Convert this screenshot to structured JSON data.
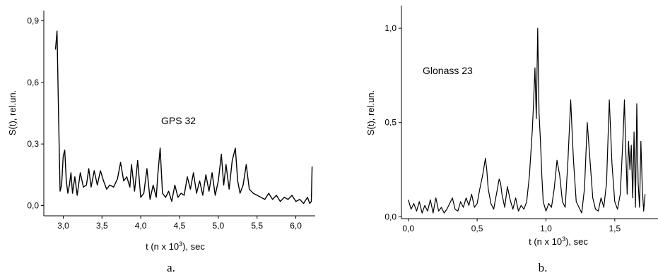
{
  "chart_data": [
    {
      "type": "line",
      "annotation": "GPS 32",
      "caption": "a.",
      "xlabel_main": "t (n x 10",
      "xlabel_sup": "3",
      "xlabel_tail": "), sec",
      "ylabel": "S(t), rel.un.",
      "xlim": [
        2.75,
        6.25
      ],
      "ylim": [
        -0.05,
        0.95
      ],
      "xticks": [
        3.0,
        3.5,
        4.0,
        4.5,
        5.0,
        5.5,
        6.0
      ],
      "xtick_labels": [
        "3,0",
        "3,5",
        "4,0",
        "4,5",
        "5,0",
        "5,5",
        "6,0"
      ],
      "yticks": [
        0.0,
        0.3,
        0.6,
        0.9
      ],
      "ytick_labels": [
        "0,0",
        "0,3",
        "0,6",
        "0,9"
      ],
      "grid": false,
      "x": [
        2.9,
        2.92,
        2.94,
        2.96,
        2.98,
        3.0,
        3.02,
        3.04,
        3.06,
        3.08,
        3.1,
        3.12,
        3.15,
        3.18,
        3.22,
        3.26,
        3.3,
        3.33,
        3.36,
        3.4,
        3.44,
        3.48,
        3.52,
        3.56,
        3.6,
        3.65,
        3.7,
        3.74,
        3.78,
        3.82,
        3.86,
        3.88,
        3.92,
        3.96,
        4.0,
        4.04,
        4.08,
        4.12,
        4.16,
        4.2,
        4.22,
        4.25,
        4.28,
        4.32,
        4.36,
        4.4,
        4.44,
        4.48,
        4.52,
        4.56,
        4.6,
        4.64,
        4.68,
        4.72,
        4.76,
        4.8,
        4.84,
        4.88,
        4.92,
        4.96,
        5.0,
        5.04,
        5.07,
        5.1,
        5.14,
        5.18,
        5.22,
        5.25,
        5.28,
        5.32,
        5.36,
        5.4,
        5.45,
        5.5,
        5.55,
        5.6,
        5.65,
        5.7,
        5.75,
        5.8,
        5.85,
        5.9,
        5.95,
        6.0,
        6.05,
        6.1,
        6.15,
        6.18,
        6.2,
        6.21
      ],
      "y": [
        0.76,
        0.85,
        0.45,
        0.07,
        0.1,
        0.24,
        0.27,
        0.12,
        0.06,
        0.1,
        0.16,
        0.06,
        0.14,
        0.05,
        0.16,
        0.09,
        0.1,
        0.18,
        0.09,
        0.17,
        0.1,
        0.17,
        0.12,
        0.08,
        0.1,
        0.09,
        0.13,
        0.21,
        0.12,
        0.14,
        0.09,
        0.2,
        0.07,
        0.22,
        0.04,
        0.06,
        0.18,
        0.03,
        0.1,
        0.04,
        0.15,
        0.28,
        0.06,
        0.04,
        0.07,
        0.02,
        0.1,
        0.04,
        0.06,
        0.05,
        0.14,
        0.08,
        0.16,
        0.06,
        0.12,
        0.05,
        0.15,
        0.07,
        0.16,
        0.05,
        0.12,
        0.25,
        0.1,
        0.2,
        0.08,
        0.22,
        0.28,
        0.12,
        0.06,
        0.1,
        0.2,
        0.08,
        0.06,
        0.05,
        0.04,
        0.03,
        0.06,
        0.03,
        0.05,
        0.02,
        0.04,
        0.03,
        0.05,
        0.02,
        0.03,
        0.01,
        0.04,
        0.01,
        0.02,
        0.19
      ]
    },
    {
      "type": "line",
      "annotation": "Glonass 23",
      "caption": "b.",
      "xlabel_main": "t (n x 10",
      "xlabel_sup": "3",
      "xlabel_tail": "), sec",
      "ylabel": "S(t), rel.un.",
      "xlim": [
        -0.05,
        1.85
      ],
      "ylim": [
        -0.01,
        1.12
      ],
      "xticks": [
        0.0,
        0.5,
        1.0,
        1.5
      ],
      "xtick_labels": [
        "0,0",
        "0,5",
        "1,0",
        "1,5"
      ],
      "yticks": [
        0.0,
        0.5,
        1.0
      ],
      "ytick_labels": [
        "0,0",
        "0,5",
        "1,0"
      ],
      "grid": false,
      "x": [
        0.0,
        0.02,
        0.04,
        0.06,
        0.08,
        0.1,
        0.12,
        0.14,
        0.16,
        0.18,
        0.2,
        0.22,
        0.24,
        0.26,
        0.28,
        0.3,
        0.32,
        0.34,
        0.36,
        0.38,
        0.4,
        0.42,
        0.44,
        0.46,
        0.48,
        0.5,
        0.52,
        0.54,
        0.56,
        0.57,
        0.58,
        0.6,
        0.62,
        0.64,
        0.66,
        0.67,
        0.68,
        0.7,
        0.72,
        0.74,
        0.76,
        0.78,
        0.8,
        0.82,
        0.84,
        0.86,
        0.88,
        0.9,
        0.91,
        0.92,
        0.93,
        0.94,
        0.95,
        0.96,
        0.97,
        0.98,
        1.0,
        1.02,
        1.04,
        1.06,
        1.08,
        1.1,
        1.12,
        1.14,
        1.16,
        1.18,
        1.19,
        1.2,
        1.22,
        1.24,
        1.26,
        1.28,
        1.3,
        1.32,
        1.34,
        1.36,
        1.38,
        1.4,
        1.42,
        1.44,
        1.46,
        1.47,
        1.48,
        1.5,
        1.52,
        1.54,
        1.56,
        1.57,
        1.58,
        1.59,
        1.6,
        1.61,
        1.62,
        1.63,
        1.64,
        1.65,
        1.66,
        1.67,
        1.68,
        1.69,
        1.7,
        1.71,
        1.72
      ],
      "y": [
        0.09,
        0.04,
        0.07,
        0.03,
        0.08,
        0.02,
        0.06,
        0.03,
        0.09,
        0.02,
        0.1,
        0.03,
        0.05,
        0.02,
        0.04,
        0.07,
        0.1,
        0.04,
        0.03,
        0.08,
        0.05,
        0.1,
        0.06,
        0.12,
        0.05,
        0.07,
        0.15,
        0.22,
        0.31,
        0.25,
        0.15,
        0.07,
        0.04,
        0.12,
        0.2,
        0.18,
        0.12,
        0.05,
        0.16,
        0.09,
        0.04,
        0.1,
        0.03,
        0.06,
        0.04,
        0.08,
        0.22,
        0.45,
        0.6,
        0.79,
        0.52,
        1.0,
        0.55,
        0.4,
        0.22,
        0.08,
        0.03,
        0.07,
        0.05,
        0.15,
        0.3,
        0.22,
        0.08,
        0.05,
        0.3,
        0.62,
        0.45,
        0.3,
        0.08,
        0.05,
        0.02,
        0.15,
        0.5,
        0.3,
        0.1,
        0.04,
        0.03,
        0.1,
        0.05,
        0.18,
        0.62,
        0.45,
        0.28,
        0.08,
        0.04,
        0.12,
        0.42,
        0.62,
        0.35,
        0.12,
        0.4,
        0.25,
        0.38,
        0.1,
        0.45,
        0.05,
        0.6,
        0.18,
        0.05,
        0.4,
        0.15,
        0.03,
        0.12
      ]
    }
  ]
}
